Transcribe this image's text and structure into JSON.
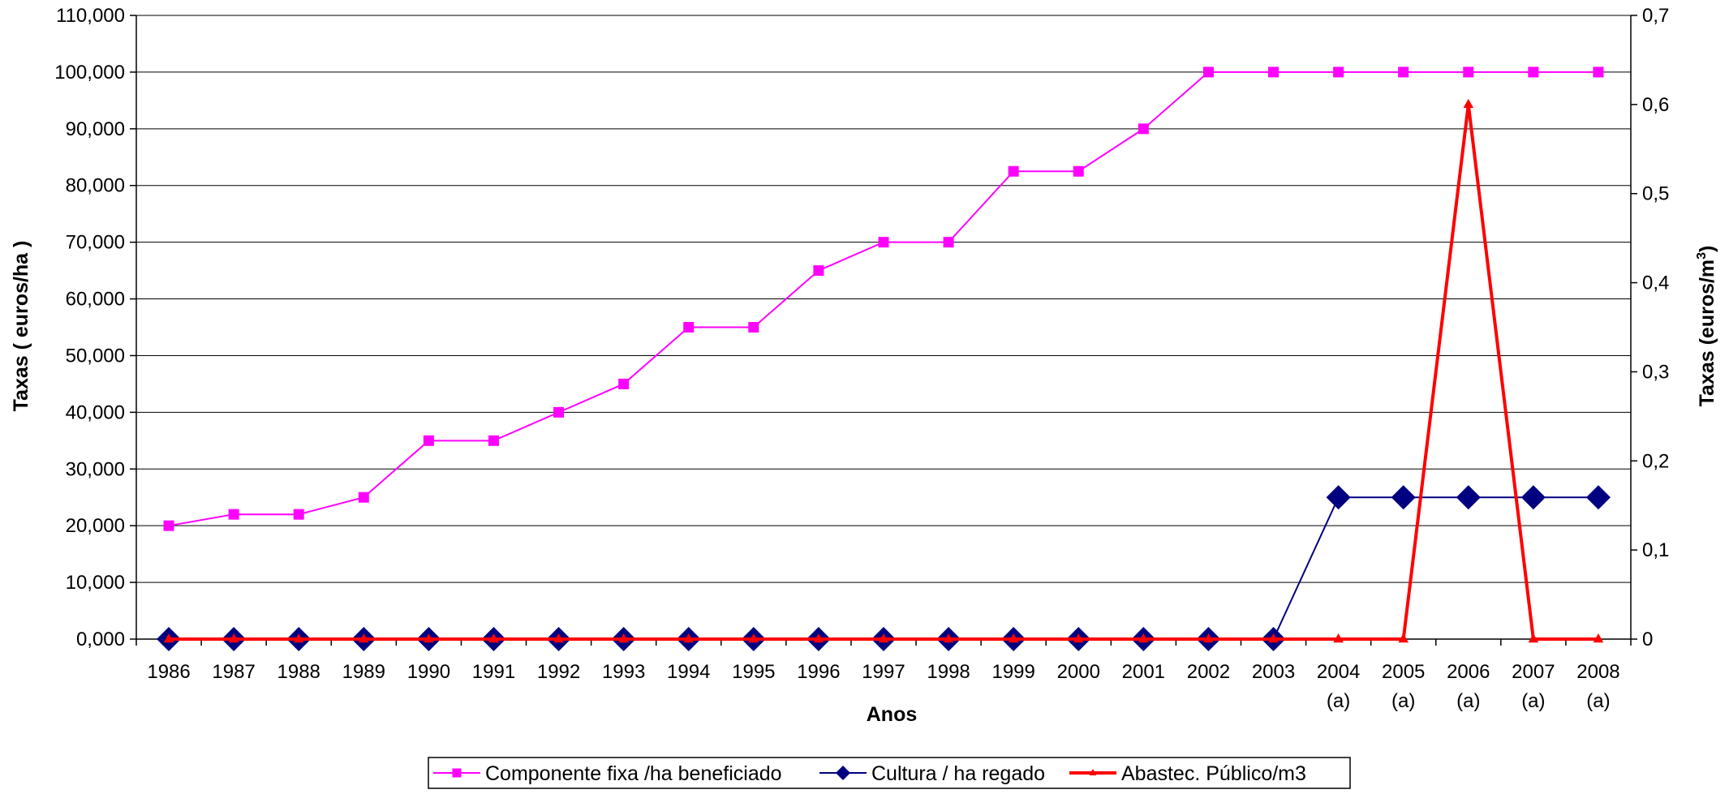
{
  "chart_data": {
    "type": "line",
    "xlabel": "Anos",
    "ylabel_left": "Taxas ( euros/ha )",
    "ylabel_right_main": "Taxas (euros/m",
    "ylabel_right_sup": "3",
    "ylabel_right_end": ")",
    "ylim_left": [
      0,
      110000
    ],
    "ylim_right": [
      0,
      0.7
    ],
    "left_ticks": [
      "0,000",
      "10,000",
      "20,000",
      "30,000",
      "40,000",
      "50,000",
      "60,000",
      "70,000",
      "80,000",
      "90,000",
      "100,000",
      "110,000"
    ],
    "right_ticks": [
      "0",
      "0,1",
      "0,2",
      "0,3",
      "0,4",
      "0,5",
      "0,6",
      "0,7"
    ],
    "categories": [
      "1986",
      "1987",
      "1988",
      "1989",
      "1990",
      "1991",
      "1992",
      "1993",
      "1994",
      "1995",
      "1996",
      "1997",
      "1998",
      "1999",
      "2000",
      "2001",
      "2002",
      "2003",
      "2004",
      "2005",
      "2006",
      "2007",
      "2008"
    ],
    "category_notes": [
      "",
      "",
      "",
      "",
      "",
      "",
      "",
      "",
      "",
      "",
      "",
      "",
      "",
      "",
      "",
      "",
      "",
      "",
      "(a)",
      "(a)",
      "(a)",
      "(a)",
      "(a)"
    ],
    "grid": true,
    "legend_position": "bottom",
    "series": [
      {
        "name": "Componente fixa  /ha beneficiado",
        "axis": "left",
        "color": "#FF00FF",
        "marker": "square",
        "values": [
          20000,
          22000,
          22000,
          25000,
          35000,
          35000,
          40000,
          45000,
          55000,
          55000,
          65000,
          70000,
          70000,
          82500,
          82500,
          90000,
          100000,
          100000,
          100000,
          100000,
          100000,
          100000,
          100000
        ]
      },
      {
        "name": "Cultura  / ha regado",
        "axis": "left",
        "color": "#000080",
        "marker": "diamond",
        "values": [
          0,
          0,
          0,
          0,
          0,
          0,
          0,
          0,
          0,
          0,
          0,
          0,
          0,
          0,
          0,
          0,
          0,
          0,
          25000,
          25000,
          25000,
          25000,
          25000
        ]
      },
      {
        "name": "Abastec.  Público/m3",
        "axis": "right",
        "color": "#FF0000",
        "marker": "triangle",
        "values": [
          0,
          0,
          0,
          0,
          0,
          0,
          0,
          0,
          0,
          0,
          0,
          0,
          0,
          0,
          0,
          0,
          0,
          0,
          0,
          0,
          0.6,
          0,
          0
        ]
      }
    ]
  }
}
